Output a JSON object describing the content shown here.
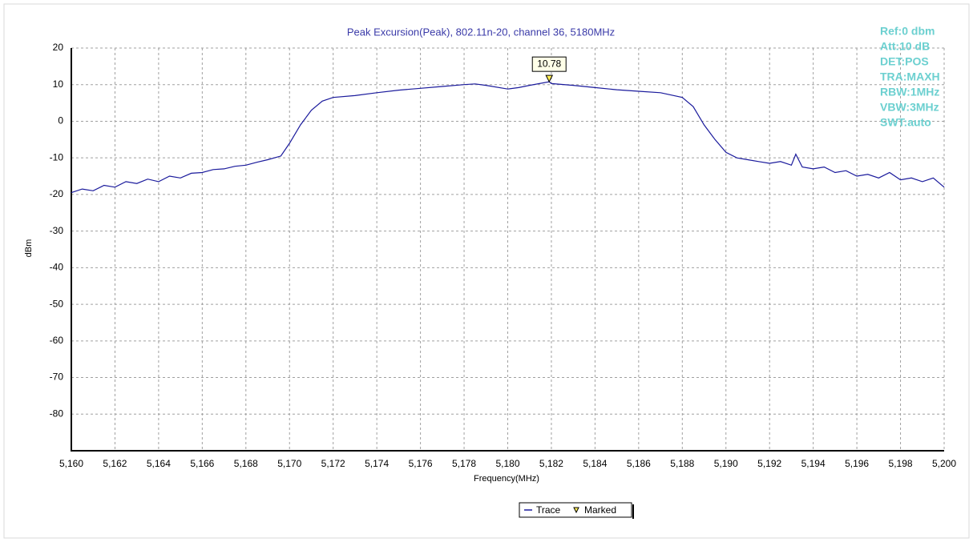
{
  "chart_data": {
    "type": "line",
    "title": "Peak Excursion(Peak), 802.11n-20, channel 36, 5180MHz",
    "x_label": "Frequency(MHz)",
    "y_label": "dBm",
    "info": [
      "Ref:0 dbm",
      "Att:10 dB",
      "DET:POS",
      "TRA:MAXH",
      "RBW:1MHz",
      "VBW:3MHz",
      "SWT:auto"
    ],
    "x": [
      5160,
      5160.5,
      5161,
      5161.5,
      5162,
      5162.5,
      5163,
      5163.5,
      5164,
      5164.5,
      5165,
      5165.5,
      5166,
      5166.5,
      5167,
      5167.5,
      5168,
      5168.5,
      5169,
      5169.6,
      5170,
      5170.5,
      5171,
      5171.5,
      5172,
      5173,
      5174,
      5175,
      5176,
      5177,
      5178,
      5178.5,
      5179,
      5180,
      5180.5,
      5181,
      5181.9,
      5182,
      5183,
      5184,
      5185,
      5186,
      5187,
      5188,
      5188.5,
      5189,
      5189.5,
      5190,
      5190.5,
      5191,
      5191.5,
      5192,
      5192.5,
      5193,
      5193.2,
      5193.5,
      5194,
      5194.5,
      5195,
      5195.5,
      5196,
      5196.5,
      5197,
      5197.5,
      5198,
      5198.5,
      5199,
      5199.5,
      5200
    ],
    "series": [
      {
        "name": "Trace",
        "color": "#1a1a9c",
        "values": [
          -19.5,
          -18.5,
          -19,
          -17.5,
          -18,
          -16.5,
          -17,
          -15.8,
          -16.5,
          -15,
          -15.5,
          -14.2,
          -14,
          -13.2,
          -13,
          -12.3,
          -12,
          -11.2,
          -10.5,
          -9.5,
          -6,
          -1,
          3,
          5.5,
          6.5,
          7,
          7.8,
          8.5,
          9,
          9.5,
          10,
          10.2,
          9.8,
          8.8,
          9.2,
          9.8,
          10.78,
          10.3,
          9.8,
          9.2,
          8.6,
          8.2,
          7.8,
          6.5,
          4,
          -1,
          -5,
          -8.5,
          -10,
          -10.5,
          -11,
          -11.5,
          -11,
          -12,
          -9,
          -12.5,
          -13,
          -12.5,
          -14,
          -13.5,
          -15,
          -14.5,
          -15.5,
          -14,
          -16,
          -15.5,
          -16.5,
          -15.5,
          -18
        ]
      }
    ],
    "marker": {
      "name": "Marked",
      "x": 5181.9,
      "value": 10.78,
      "color": "#ffee55"
    },
    "xlim": [
      5160,
      5200
    ],
    "ylim": [
      -90,
      20
    ],
    "xticks": [
      {
        "value": 5160,
        "label": "5,160"
      },
      {
        "value": 5162,
        "label": "5,162"
      },
      {
        "value": 5164,
        "label": "5,164"
      },
      {
        "value": 5166,
        "label": "5,166"
      },
      {
        "value": 5168,
        "label": "5,168"
      },
      {
        "value": 5170,
        "label": "5,170"
      },
      {
        "value": 5172,
        "label": "5,172"
      },
      {
        "value": 5174,
        "label": "5,174"
      },
      {
        "value": 5176,
        "label": "5,176"
      },
      {
        "value": 5178,
        "label": "5,178"
      },
      {
        "value": 5180,
        "label": "5,180"
      },
      {
        "value": 5182,
        "label": "5,182"
      },
      {
        "value": 5184,
        "label": "5,184"
      },
      {
        "value": 5186,
        "label": "5,186"
      },
      {
        "value": 5188,
        "label": "5,188"
      },
      {
        "value": 5190,
        "label": "5,190"
      },
      {
        "value": 5192,
        "label": "5,192"
      },
      {
        "value": 5194,
        "label": "5,194"
      },
      {
        "value": 5196,
        "label": "5,196"
      },
      {
        "value": 5198,
        "label": "5,198"
      },
      {
        "value": 5200,
        "label": "5,200"
      }
    ],
    "yticks": [
      20,
      10,
      0,
      -10,
      -20,
      -30,
      -40,
      -50,
      -60,
      -70,
      -80
    ],
    "grid": true
  }
}
